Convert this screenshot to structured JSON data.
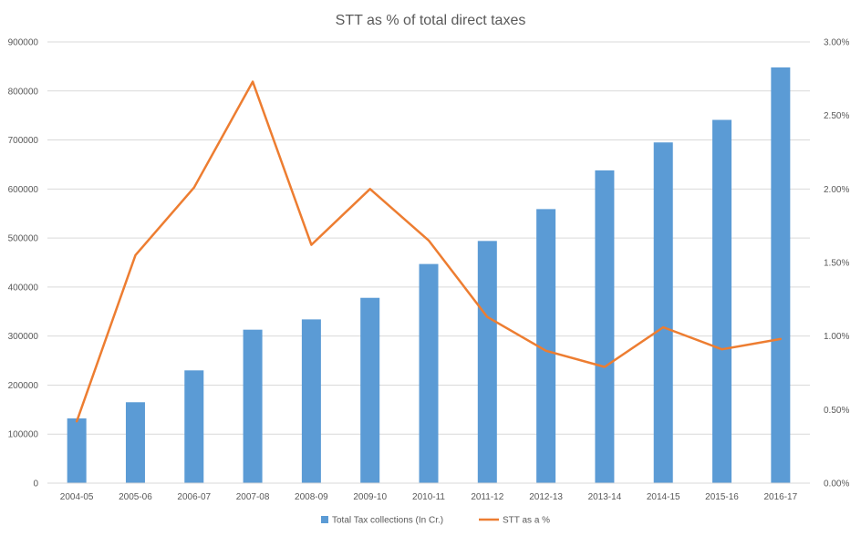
{
  "chart_data": {
    "type": "bar",
    "title": "STT as % of total direct taxes",
    "categories": [
      "2004-05",
      "2005-06",
      "2006-07",
      "2007-08",
      "2008-09",
      "2009-10",
      "2010-11",
      "2011-12",
      "2012-13",
      "2013-14",
      "2014-15",
      "2015-16",
      "2016-17"
    ],
    "series": [
      {
        "name": "Total Tax collections (In Cr.)",
        "type": "bar",
        "axis": "left",
        "color": "#5B9BD5",
        "values": [
          132000,
          165000,
          230000,
          313000,
          334000,
          378000,
          447000,
          494000,
          559000,
          638000,
          695000,
          741000,
          848000
        ]
      },
      {
        "name": "STT as a %",
        "type": "line",
        "axis": "right",
        "color": "#ED7D31",
        "values": [
          0.0042,
          0.0155,
          0.0201,
          0.0273,
          0.0162,
          0.02,
          0.0165,
          0.0113,
          0.009,
          0.0079,
          0.0106,
          0.0091,
          0.0098
        ]
      }
    ],
    "left_axis": {
      "ylim": [
        0,
        900000
      ],
      "ticks": [
        0,
        100000,
        200000,
        300000,
        400000,
        500000,
        600000,
        700000,
        800000,
        900000
      ],
      "tick_labels": [
        "0",
        "100000",
        "200000",
        "300000",
        "400000",
        "500000",
        "600000",
        "700000",
        "800000",
        "900000"
      ]
    },
    "right_axis": {
      "ylim": [
        0,
        0.03
      ],
      "ticks": [
        0,
        0.005,
        0.01,
        0.015,
        0.02,
        0.025,
        0.03
      ],
      "tick_labels": [
        "0.00%",
        "0.50%",
        "1.00%",
        "1.50%",
        "2.00%",
        "2.50%",
        "3.00%"
      ]
    },
    "grid": true,
    "legend_position": "bottom",
    "colors": {
      "gridline": "#D9D9D9",
      "text": "#595959"
    }
  }
}
